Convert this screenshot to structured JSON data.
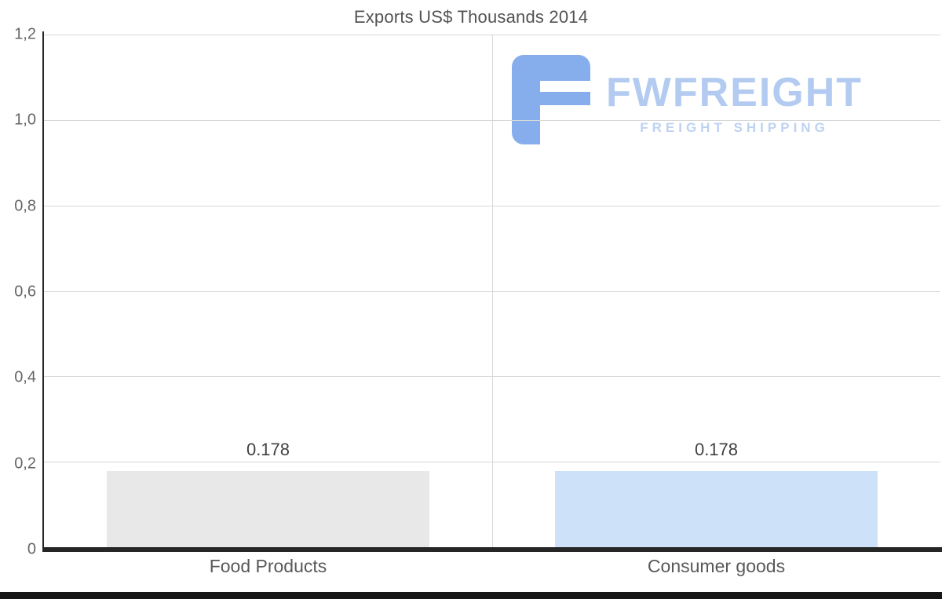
{
  "watermark": {
    "brand": "FWFREIGHT",
    "tagline": "FREIGHT SHIPPING",
    "icon_color": "#87aeec",
    "brand_color": "#b3cbf0",
    "tagline_color": "#bed2f2"
  },
  "chart_data": {
    "type": "bar",
    "title": "Exports US$ Thousands 2014",
    "categories": [
      "Food Products",
      "Consumer goods"
    ],
    "values": [
      0.178,
      0.178
    ],
    "value_labels": [
      "0.178",
      "0.178"
    ],
    "bar_colors": [
      "#e8e8e8",
      "#cde2f9"
    ],
    "xlabel": "",
    "ylabel": "",
    "ylim": [
      0,
      1.2
    ],
    "ytick_values": [
      1.2,
      1.0,
      0.8,
      0.6,
      0.4,
      0.2,
      0
    ],
    "ytick_labels": [
      "1,2",
      "1,0",
      "0,8",
      "0,6",
      "0,4",
      "0,2",
      "0"
    ],
    "grid": true,
    "legend_position": "none",
    "gridline_color": "#d8d8d8",
    "axis_color": "#262626"
  }
}
